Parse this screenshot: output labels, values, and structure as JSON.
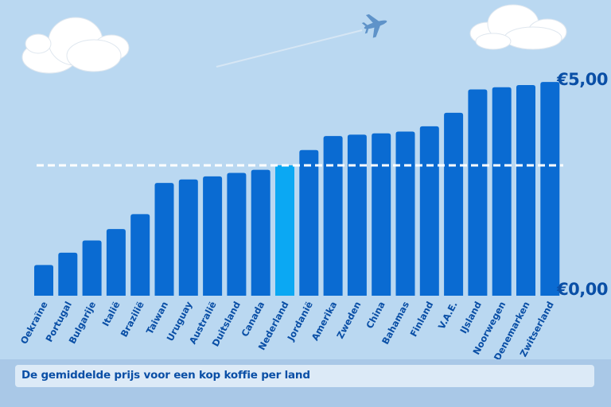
{
  "chart_data": {
    "type": "bar",
    "title": "",
    "xlabel": "",
    "ylabel": "",
    "categories": [
      "Oekraïne",
      "Portugal",
      "Bulgarije",
      "Italië",
      "Brazilië",
      "Taiwan",
      "Uruguay",
      "Australië",
      "Duitsland",
      "Canada",
      "Nederland",
      "Jordanië",
      "Amerika",
      "Zweden",
      "China",
      "Bahamas",
      "Finland",
      "V.A.E.",
      "IJsland",
      "Noorwegen",
      "Denemarken",
      "Zwitserland"
    ],
    "values": [
      0.7,
      0.98,
      1.26,
      1.52,
      1.86,
      2.57,
      2.65,
      2.72,
      2.8,
      2.87,
      2.97,
      3.32,
      3.64,
      3.67,
      3.7,
      3.74,
      3.86,
      4.17,
      4.7,
      4.75,
      4.8,
      4.87
    ],
    "ylim": [
      0,
      5
    ],
    "highlight": "Nederland",
    "reference_line": 2.97,
    "y_axis_labels": {
      "top": "€5,00",
      "bottom": "€0,00"
    },
    "colors": {
      "bar": "#0a6bd2",
      "highlight": "#0ba8f3",
      "reference_line": "#ffffff",
      "background": "#bad8f1"
    },
    "grid": false,
    "legend": "none"
  },
  "caption": "De gemiddelde prijs voor een kop koffie per land",
  "decorations": {
    "left_cloud": "cloud-icon",
    "right_cloud": "cloud-icon",
    "plane": "airplane-icon"
  }
}
